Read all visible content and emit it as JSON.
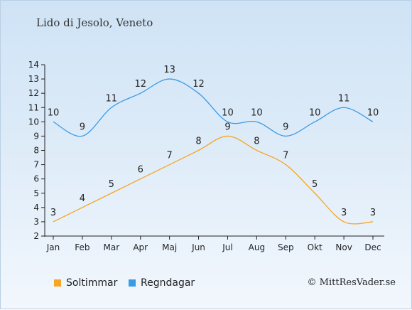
{
  "title": "Lido di Jesolo, Veneto",
  "credit": "© MittResVader.se",
  "chart_data": {
    "type": "line",
    "categories": [
      "Jan",
      "Feb",
      "Mar",
      "Apr",
      "Maj",
      "Jun",
      "Jul",
      "Aug",
      "Sep",
      "Okt",
      "Nov",
      "Dec"
    ],
    "ylim": [
      2,
      14
    ],
    "yticks": [
      2,
      3,
      4,
      5,
      6,
      7,
      8,
      9,
      10,
      11,
      12,
      13,
      14
    ],
    "grid": false,
    "legend_position": "bottom-left",
    "series": [
      {
        "name": "Soltimmar",
        "color": "#f5a623",
        "values": [
          3,
          4,
          5,
          6,
          7,
          8,
          9,
          8,
          7,
          5,
          3,
          3
        ]
      },
      {
        "name": "Regndagar",
        "color": "#3a9be6",
        "values": [
          10,
          9,
          11,
          12,
          13,
          12,
          10,
          10,
          9,
          10,
          11,
          10
        ]
      }
    ]
  }
}
